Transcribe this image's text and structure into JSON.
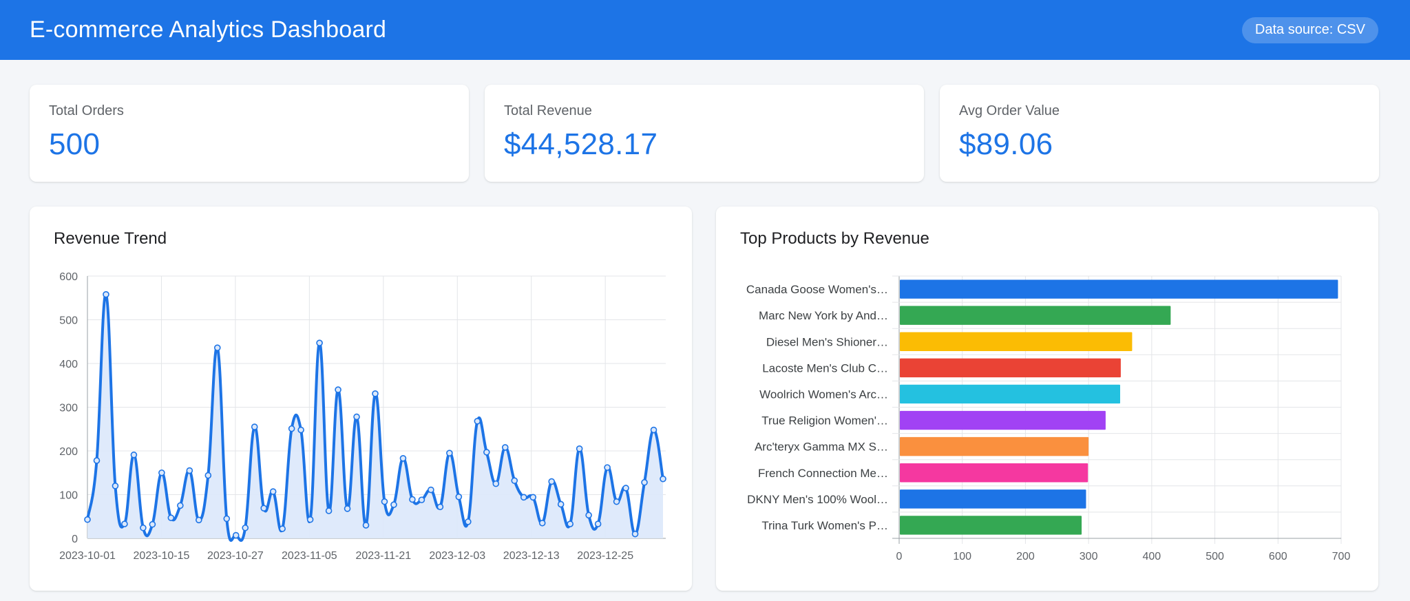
{
  "header": {
    "title": "E-commerce Analytics Dashboard",
    "data_source": "Data source: CSV"
  },
  "kpis": [
    {
      "label": "Total Orders",
      "value": "500"
    },
    {
      "label": "Total Revenue",
      "value": "$44,528.17"
    },
    {
      "label": "Avg Order Value",
      "value": "$89.06"
    }
  ],
  "colors": {
    "header_bg": "#1d74e6",
    "accent": "#1d74e6",
    "line": "#1d74e6",
    "area_fill": "#dbe8fb",
    "bar_palette": [
      "#1d74e6",
      "#34a853",
      "#fbbc04",
      "#ea4335",
      "#24c1e0",
      "#a142f4",
      "#fa903e",
      "#f538a0",
      "#1d74e6",
      "#34a853"
    ]
  },
  "chart_data": [
    {
      "type": "area",
      "title": "Revenue Trend",
      "xlabel": "",
      "ylabel": "",
      "ylim": [
        0,
        600
      ],
      "yticks": [
        0,
        100,
        200,
        300,
        400,
        500,
        600
      ],
      "xticks": [
        "2023-10-01",
        "2023-10-15",
        "2023-10-27",
        "2023-11-05",
        "2023-11-21",
        "2023-12-03",
        "2023-12-13",
        "2023-12-25"
      ],
      "grid": true,
      "values": [
        43,
        178,
        558,
        120,
        33,
        191,
        24,
        32,
        150,
        47,
        75,
        155,
        42,
        144,
        436,
        45,
        7,
        24,
        255,
        69,
        107,
        22,
        251,
        248,
        43,
        447,
        63,
        340,
        68,
        278,
        30,
        331,
        84,
        77,
        183,
        89,
        88,
        111,
        72,
        195,
        95,
        38,
        268,
        197,
        125,
        208,
        132,
        94,
        94,
        35,
        130,
        78,
        33,
        205,
        53,
        33,
        162,
        84,
        115,
        10,
        128,
        248,
        136
      ]
    },
    {
      "type": "bar",
      "orientation": "horizontal",
      "title": "Top Products by Revenue",
      "xlim": [
        0,
        700
      ],
      "xticks": [
        0,
        100,
        200,
        300,
        400,
        500,
        600,
        700
      ],
      "grid": true,
      "categories": [
        "Canada Goose Women's…",
        "Marc New York by And…",
        "Diesel Men's Shioner…",
        "Lacoste Men's Club C…",
        "Woolrich Women's Arc…",
        "True Religion Women'…",
        "Arc'teryx Gamma MX S…",
        "French Connection Me…",
        "DKNY Men's 100% Wool…",
        "Trina Turk Women's P…"
      ],
      "values": [
        695,
        430,
        369,
        351,
        350,
        327,
        300,
        299,
        296,
        289
      ]
    }
  ]
}
